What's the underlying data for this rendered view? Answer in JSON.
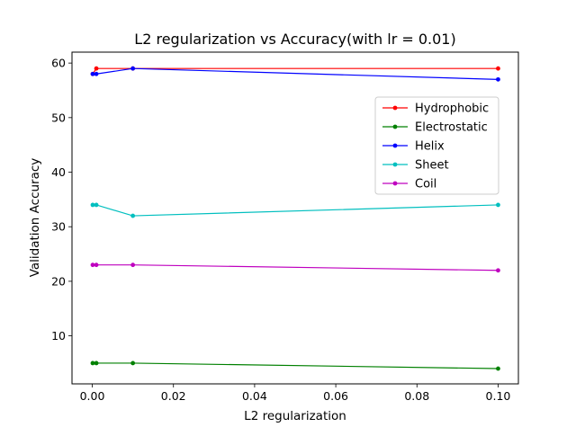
{
  "chart_data": {
    "type": "line",
    "title": "L2 regularization vs Accuracy(with lr = 0.01)",
    "xlabel": "L2 regularization",
    "ylabel": "Validation Accuracy",
    "x": [
      0.0001,
      0.001,
      0.01,
      0.1
    ],
    "xlim": [
      -0.005,
      0.105
    ],
    "ylim": [
      1.2,
      62.0
    ],
    "xticks": [
      0.0,
      0.02,
      0.04,
      0.06,
      0.08,
      0.1
    ],
    "xtick_labels": [
      "0.00",
      "0.02",
      "0.04",
      "0.06",
      "0.08",
      "0.10"
    ],
    "yticks": [
      10,
      20,
      30,
      40,
      50,
      60
    ],
    "ytick_labels": [
      "10",
      "20",
      "30",
      "40",
      "50",
      "60"
    ],
    "grid": false,
    "legend_position": "right",
    "series": [
      {
        "name": "Hydrophobic",
        "color": "#ff0000",
        "values": [
          58,
          59,
          59,
          59
        ]
      },
      {
        "name": "Electrostatic",
        "color": "#008000",
        "values": [
          5,
          5,
          5,
          4
        ]
      },
      {
        "name": "Helix",
        "color": "#0000ff",
        "values": [
          58,
          58,
          59,
          57
        ]
      },
      {
        "name": "Sheet",
        "color": "#00bfbf",
        "values": [
          34,
          34,
          32,
          34
        ]
      },
      {
        "name": "Coil",
        "color": "#bf00bf",
        "values": [
          23,
          23,
          23,
          22
        ]
      }
    ]
  }
}
